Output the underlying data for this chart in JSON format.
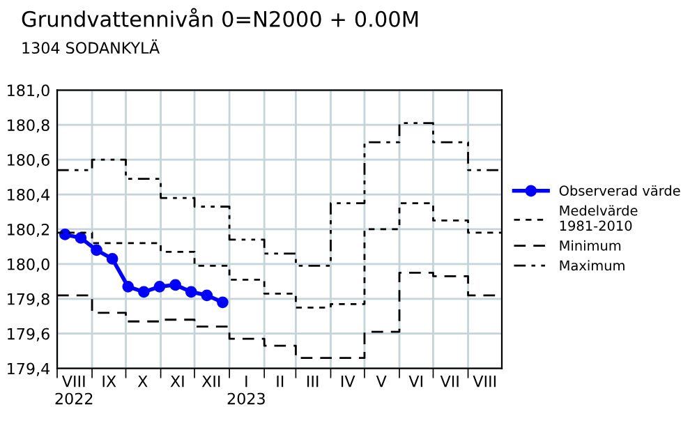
{
  "chart_data": {
    "type": "line",
    "title": "Grundvattennivån 0=N2000 + 0.00M",
    "subtitle": "1304 SODANKYLÄ",
    "xlim": [
      "2022-08-01",
      "2023-08-31"
    ],
    "xticks": [
      {
        "value": "2022-08-01",
        "label": null
      },
      {
        "value": "2022-08-16",
        "label": "VIII\n2022"
      },
      {
        "value": "2022-09-01",
        "label": null
      },
      {
        "value": "2022-09-16",
        "label": "IX"
      },
      {
        "value": "2022-10-01",
        "label": null
      },
      {
        "value": "2022-10-16",
        "label": "X"
      },
      {
        "value": "2022-11-01",
        "label": null
      },
      {
        "value": "2022-11-16",
        "label": "XI"
      },
      {
        "value": "2022-12-01",
        "label": null
      },
      {
        "value": "2022-12-16",
        "label": "XII"
      },
      {
        "value": "2023-01-01",
        "label": null
      },
      {
        "value": "2023-01-16",
        "label": "I\n2023"
      },
      {
        "value": "2023-02-01",
        "label": null
      },
      {
        "value": "2023-02-15",
        "label": "II"
      },
      {
        "value": "2023-03-01",
        "label": null
      },
      {
        "value": "2023-03-16",
        "label": "III"
      },
      {
        "value": "2023-04-01",
        "label": null
      },
      {
        "value": "2023-04-16",
        "label": "IV"
      },
      {
        "value": "2023-05-01",
        "label": null
      },
      {
        "value": "2023-05-16",
        "label": "V"
      },
      {
        "value": "2023-06-01",
        "label": null
      },
      {
        "value": "2023-06-16",
        "label": "VI"
      },
      {
        "value": "2023-07-01",
        "label": null
      },
      {
        "value": "2023-07-16",
        "label": "VII"
      },
      {
        "value": "2023-08-01",
        "label": null
      },
      {
        "value": "2023-08-16",
        "label": "VIII"
      }
    ],
    "ylim": [
      179.4,
      181.0
    ],
    "yticks": [
      {
        "value": 179.4,
        "label": "179,4"
      },
      {
        "value": 179.6,
        "label": "179,6"
      },
      {
        "value": 179.8,
        "label": "179,8"
      },
      {
        "value": 180.0,
        "label": "180,0"
      },
      {
        "value": 180.2,
        "label": "180,2"
      },
      {
        "value": 180.4,
        "label": "180,4"
      },
      {
        "value": 180.6,
        "label": "180,6"
      },
      {
        "value": 180.8,
        "label": "180,8"
      },
      {
        "value": 181.0,
        "label": "181,0"
      }
    ],
    "grid": true,
    "legend": "right",
    "series": [
      {
        "name": "Observerad värde",
        "color": "#0000ff",
        "marker": "circle",
        "line_style": "solid",
        "x": [
          "2022-08-08",
          "2022-08-22",
          "2022-09-05",
          "2022-09-19",
          "2022-10-03",
          "2022-10-17",
          "2022-10-31",
          "2022-11-14",
          "2022-11-28",
          "2022-12-12",
          "2022-12-26"
        ],
        "values": [
          180.17,
          180.15,
          180.08,
          180.03,
          179.87,
          179.84,
          179.87,
          179.88,
          179.84,
          179.82,
          179.78
        ]
      },
      {
        "name": "Medelvärde\n1981-2010",
        "type": "step",
        "color": "#000000",
        "marker": "none",
        "line_style": "dotted",
        "x": [
          "2022-08-01",
          "2022-09-01",
          "2022-10-01",
          "2022-11-01",
          "2022-12-01",
          "2023-01-01",
          "2023-02-01",
          "2023-03-01",
          "2023-04-01",
          "2023-05-01",
          "2023-06-01",
          "2023-07-01",
          "2023-08-01",
          "2023-08-31"
        ],
        "values": [
          180.18,
          180.12,
          180.12,
          180.07,
          179.99,
          179.91,
          179.83,
          179.75,
          179.77,
          180.2,
          180.35,
          180.25,
          180.18,
          180.18
        ]
      },
      {
        "name": "Minimum",
        "type": "step",
        "color": "#000000",
        "marker": "none",
        "line_style": "dashed",
        "x": [
          "2022-08-01",
          "2022-09-01",
          "2022-10-01",
          "2022-11-01",
          "2022-12-01",
          "2023-01-01",
          "2023-02-01",
          "2023-03-01",
          "2023-04-01",
          "2023-05-01",
          "2023-06-01",
          "2023-07-01",
          "2023-08-01",
          "2023-08-31"
        ],
        "values": [
          179.82,
          179.72,
          179.67,
          179.68,
          179.64,
          179.57,
          179.53,
          179.46,
          179.46,
          179.61,
          179.95,
          179.93,
          179.82,
          179.82
        ]
      },
      {
        "name": "Maximum",
        "type": "step",
        "color": "#000000",
        "marker": "none",
        "line_style": "dashdot",
        "x": [
          "2022-08-01",
          "2022-09-01",
          "2022-10-01",
          "2022-11-01",
          "2022-12-01",
          "2023-01-01",
          "2023-02-01",
          "2023-03-01",
          "2023-04-01",
          "2023-05-01",
          "2023-06-01",
          "2023-07-01",
          "2023-08-01",
          "2023-08-31"
        ],
        "values": [
          180.54,
          180.6,
          180.49,
          180.38,
          180.33,
          180.14,
          180.06,
          179.99,
          180.35,
          180.7,
          180.81,
          180.7,
          180.54,
          180.54
        ]
      }
    ]
  }
}
